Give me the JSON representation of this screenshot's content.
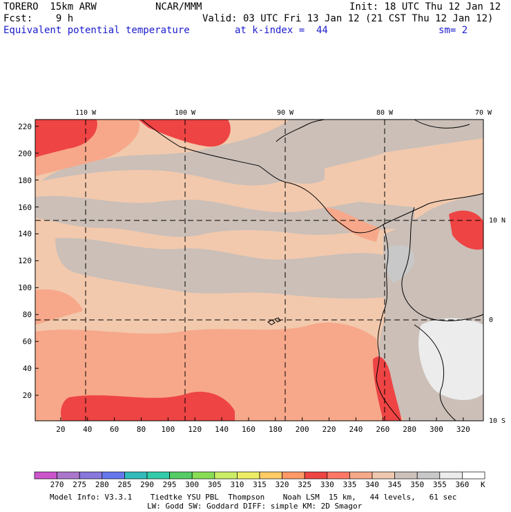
{
  "header": {
    "model": "TORERO  15km ARW",
    "center": "NCAR/MMM",
    "init": "Init: 18 UTC Thu 12 Jan 12",
    "fcst": "Fcst:    9 h",
    "valid": "Valid: 03 UTC Fri 13 Jan 12 (21 CST Thu 12 Jan 12)",
    "field": "Equivalent potential temperature",
    "level": "at k-index =  44",
    "smooth": "sm= 2"
  },
  "colors": {
    "c270": "#cc55cc",
    "c275": "#aa77cc",
    "c280": "#8877dd",
    "c285": "#6677ee",
    "c290": "#33bbbb",
    "c295": "#33ccaa",
    "c300": "#55cc66",
    "c305": "#88dd55",
    "c310": "#ccee66",
    "c315": "#eeee66",
    "c320": "#ffcc66",
    "c325": "#ff9966",
    "c330": "#ee4444",
    "c335": "#ff7766",
    "c340": "#f7a88a",
    "c345": "#f0c8b0",
    "c350": "#cdc2bb",
    "c355": "#c8c8c8",
    "c360": "#ececec",
    "ocean": "#f2c9ad",
    "grey": "#cbbfb8"
  },
  "chart_data": {
    "type": "heatmap",
    "title": "Equivalent potential temperature",
    "units": "K",
    "x_ticks": [
      20,
      40,
      60,
      80,
      100,
      120,
      140,
      160,
      180,
      200,
      220,
      240,
      260,
      280,
      300,
      320
    ],
    "y_ticks": [
      20,
      40,
      60,
      80,
      100,
      120,
      140,
      160,
      180,
      200,
      220
    ],
    "xlim": [
      1,
      335
    ],
    "ylim": [
      1,
      225
    ],
    "lon_labels": [
      "110 W",
      "100 W",
      "90 W",
      "80 W",
      "70 W"
    ],
    "lat_labels": [
      "10 N",
      "0",
      "10 S"
    ],
    "legend": {
      "levels": [
        "270",
        "275",
        "280",
        "285",
        "290",
        "295",
        "300",
        "305",
        "310",
        "315",
        "320",
        "325",
        "330",
        "335",
        "340",
        "345",
        "350",
        "355",
        "360"
      ],
      "unit": "K"
    }
  },
  "footer": {
    "line1": "Model Info: V3.3.1    Tiedtke YSU PBL  Thompson    Noah LSM  15 km,   44 levels,   61 sec",
    "line2": "LW: Godd SW: Goddard DIFF: simple KM: 2D Smagor"
  }
}
